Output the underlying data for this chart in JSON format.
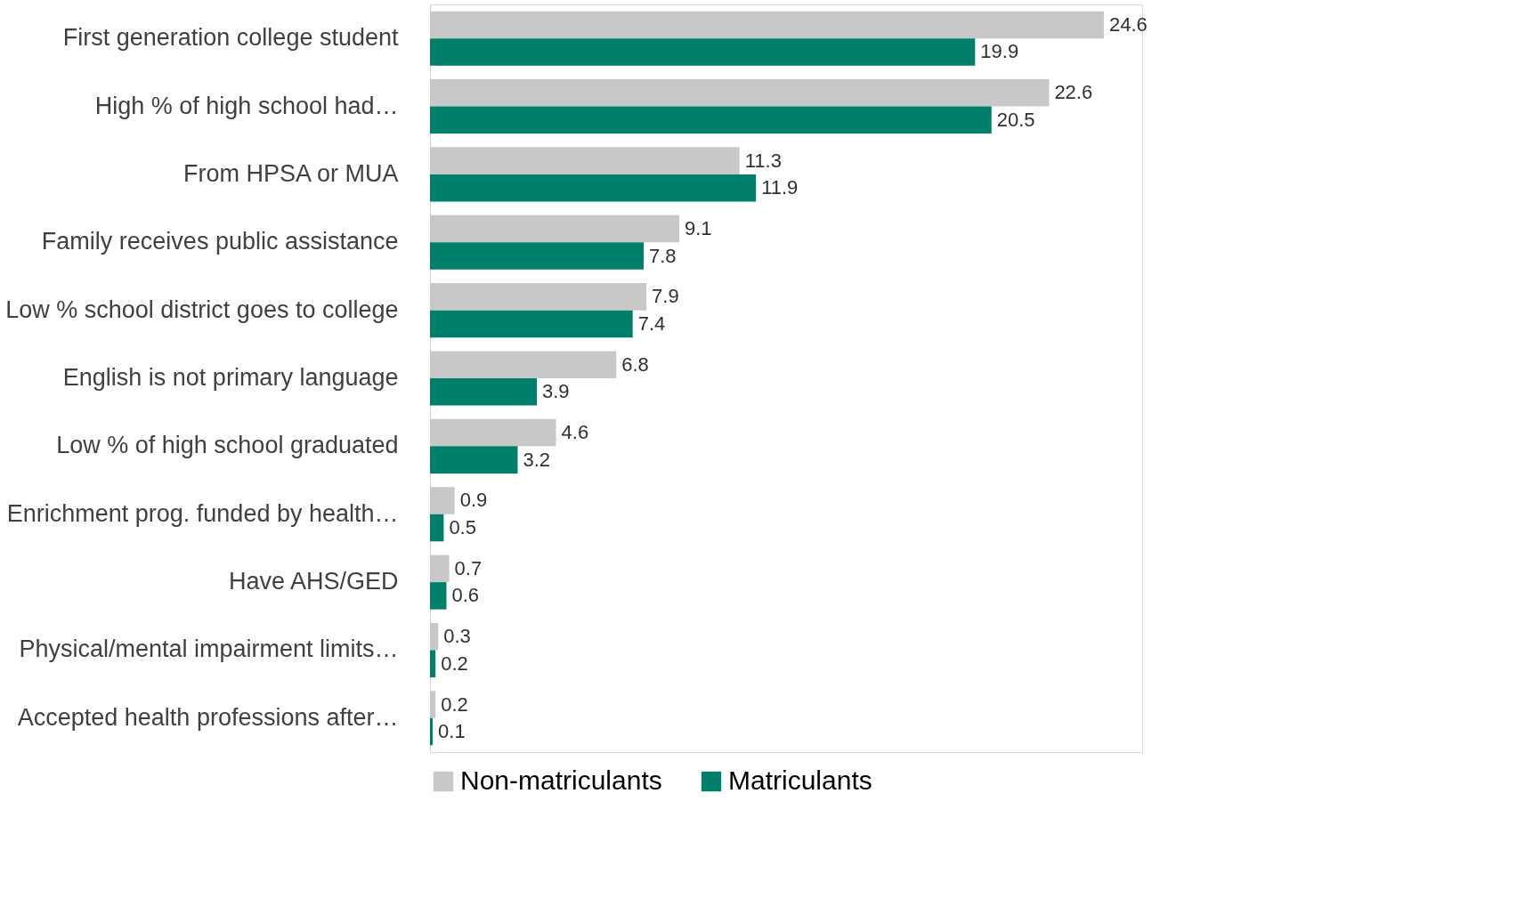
{
  "chart_data": {
    "type": "bar",
    "orientation": "horizontal",
    "categories": [
      "First generation college student",
      "High % of high school had…",
      "From HPSA or MUA",
      "Family receives public assistance",
      "Low % school district goes to college",
      "English is not primary language",
      "Low % of high school graduated",
      "Enrichment prog. funded by health…",
      "Have AHS/GED",
      "Physical/mental impairment limits…",
      "Accepted health professions after…"
    ],
    "series": [
      {
        "name": "Non-matriculants",
        "color": "#c8c8c8",
        "values": [
          24.6,
          22.6,
          11.3,
          9.1,
          7.9,
          6.8,
          4.6,
          0.9,
          0.7,
          0.3,
          0.2
        ]
      },
      {
        "name": "Matriculants",
        "color": "#00806a",
        "values": [
          19.9,
          20.5,
          11.9,
          7.8,
          7.4,
          3.9,
          3.2,
          0.5,
          0.6,
          0.2,
          0.1
        ]
      }
    ],
    "data_labels": true,
    "legend": "bottom",
    "grid": false
  }
}
